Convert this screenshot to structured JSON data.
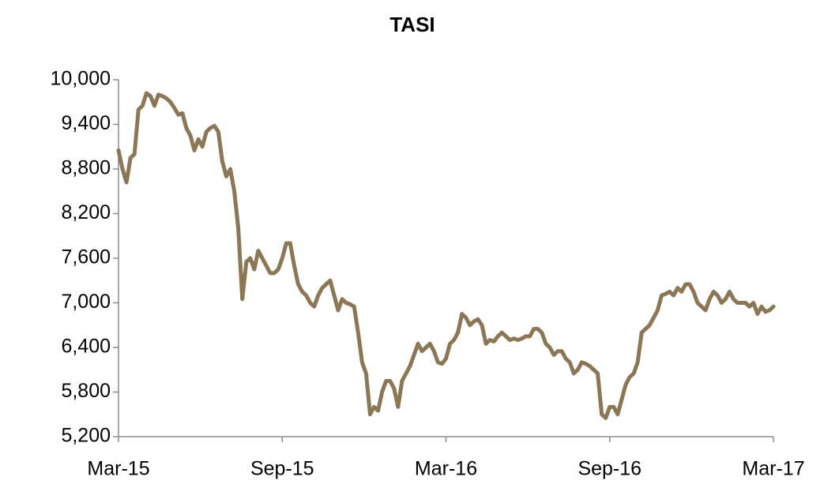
{
  "chart_data": {
    "type": "line",
    "title": "TASI",
    "categories": [
      "Mar-15",
      null,
      null,
      null,
      null,
      null,
      null,
      null,
      null,
      null,
      null,
      null,
      null,
      null,
      null,
      null,
      null,
      null,
      null,
      null,
      null,
      null,
      null,
      null,
      null,
      null,
      null,
      null,
      null,
      null,
      null,
      null,
      null,
      null,
      null,
      null,
      null,
      null,
      null,
      null,
      null,
      "Sep-15",
      null,
      null,
      null,
      null,
      null,
      null,
      null,
      null,
      null,
      null,
      null,
      null,
      null,
      null,
      null,
      null,
      null,
      null,
      null,
      null,
      null,
      null,
      null,
      null,
      null,
      null,
      null,
      null,
      null,
      null,
      null,
      null,
      null,
      null,
      null,
      null,
      null,
      null,
      null,
      null,
      "Mar-16",
      null,
      null,
      null,
      null,
      null,
      null,
      null,
      null,
      null,
      null,
      null,
      null,
      null,
      null,
      null,
      null,
      null,
      null,
      null,
      null,
      null,
      null,
      null,
      null,
      null,
      null,
      null,
      null,
      null,
      null,
      null,
      null,
      null,
      null,
      null,
      null,
      null,
      null,
      null,
      null,
      "Sep-16",
      null,
      null,
      null,
      null,
      null,
      null,
      null,
      null,
      null,
      null,
      null,
      null,
      null,
      null,
      null,
      null,
      null,
      null,
      null,
      null,
      null,
      null,
      null,
      null,
      null,
      null,
      null,
      null,
      null,
      null,
      null,
      null,
      null,
      null,
      null,
      null,
      null,
      null,
      null,
      null,
      "Mar-17"
    ],
    "series": [
      {
        "name": "TASI",
        "color": "#8b7755",
        "values": [
          9050,
          8800,
          8620,
          8950,
          9000,
          9600,
          9650,
          9820,
          9780,
          9650,
          9800,
          9780,
          9750,
          9700,
          9620,
          9530,
          9550,
          9350,
          9250,
          9050,
          9200,
          9100,
          9300,
          9350,
          9380,
          9300,
          8900,
          8700,
          8800,
          8500,
          8000,
          7050,
          7550,
          7600,
          7450,
          7700,
          7600,
          7500,
          7400,
          7400,
          7450,
          7600,
          7800,
          7800,
          7500,
          7250,
          7150,
          7100,
          7000,
          6950,
          7100,
          7200,
          7250,
          7300,
          7100,
          6900,
          7050,
          7000,
          6980,
          6950,
          6600,
          6200,
          6050,
          5500,
          5600,
          5550,
          5800,
          5950,
          5950,
          5850,
          5600,
          5950,
          6050,
          6150,
          6300,
          6450,
          6350,
          6400,
          6450,
          6350,
          6200,
          6180,
          6250,
          6450,
          6500,
          6600,
          6850,
          6800,
          6700,
          6750,
          6780,
          6700,
          6450,
          6500,
          6480,
          6550,
          6600,
          6550,
          6500,
          6520,
          6500,
          6520,
          6550,
          6550,
          6650,
          6650,
          6600,
          6450,
          6400,
          6300,
          6350,
          6350,
          6250,
          6200,
          6050,
          6100,
          6200,
          6180,
          6150,
          6100,
          6050,
          5500,
          5450,
          5600,
          5600,
          5500,
          5700,
          5900,
          6000,
          6050,
          6200,
          6600,
          6650,
          6700,
          6800,
          6900,
          7100,
          7120,
          7150,
          7100,
          7200,
          7150,
          7250,
          7250,
          7150,
          7000,
          6950,
          6900,
          7050,
          7150,
          7100,
          7000,
          7050,
          7150,
          7050,
          7000,
          7000,
          7000,
          6950,
          7000,
          6850,
          6950,
          6880,
          6900,
          6950
        ]
      }
    ],
    "ylim": [
      5200,
      10000
    ],
    "yticks": [
      {
        "value": 5200,
        "label": "5,200"
      },
      {
        "value": 5800,
        "label": "5,800"
      },
      {
        "value": 6400,
        "label": "6,400"
      },
      {
        "value": 7000,
        "label": "7,000"
      },
      {
        "value": 7600,
        "label": "7,600"
      },
      {
        "value": 8200,
        "label": "8,200"
      },
      {
        "value": 8800,
        "label": "8,800"
      },
      {
        "value": 9400,
        "label": "9,400"
      },
      {
        "value": 10000,
        "label": "10,000"
      }
    ],
    "grid": false
  }
}
